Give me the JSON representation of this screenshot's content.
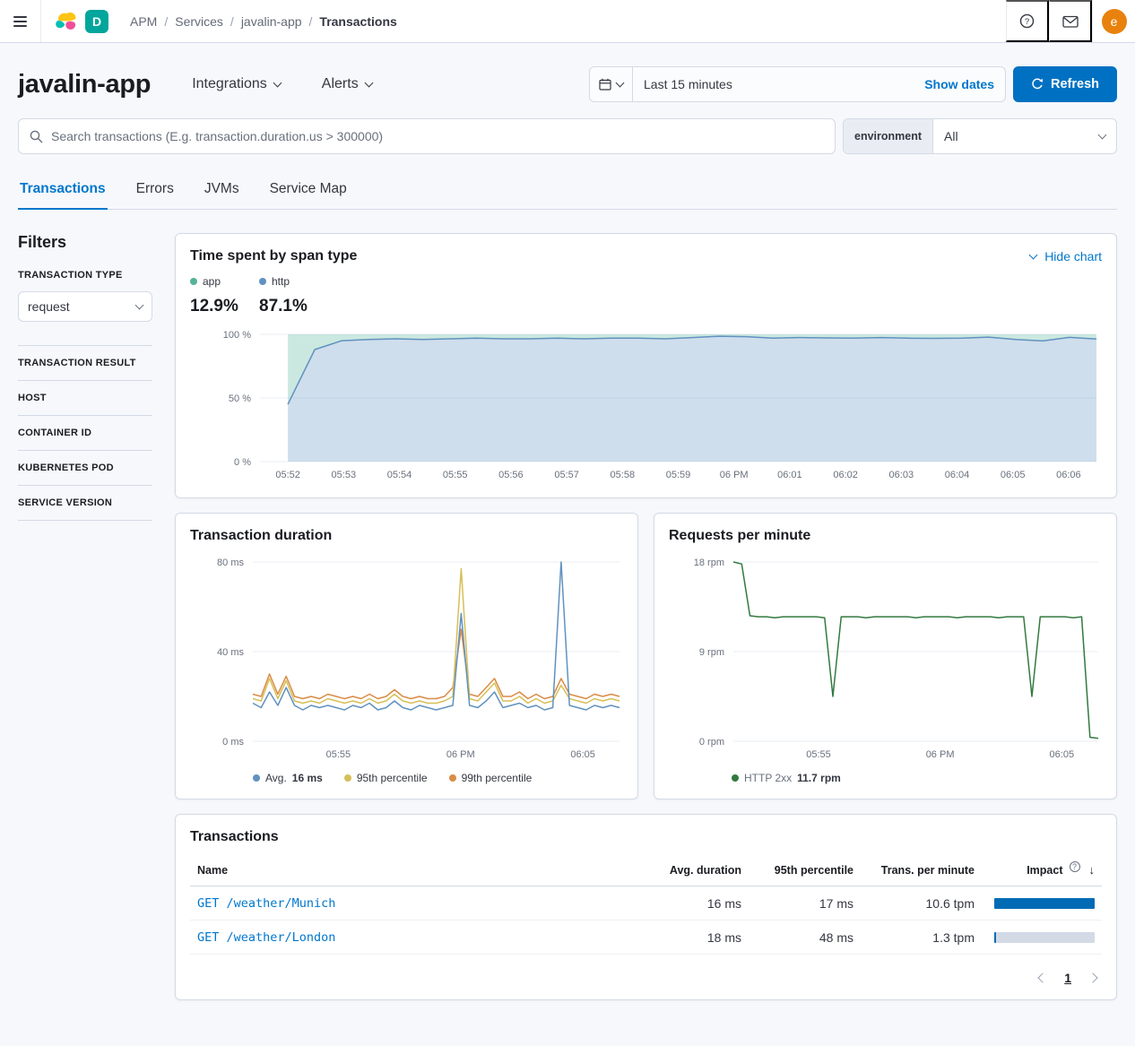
{
  "colors": {
    "primary": "#0077cc",
    "button": "#0071c2",
    "badge_teal": "#00a69b",
    "avatar_orange": "#e8820c",
    "impact_bar": "#006bb4"
  },
  "icons": {
    "help": "?",
    "impact_help": "?",
    "sort_desc": "↓"
  },
  "topbar": {
    "sep": "/",
    "deployment_badge": "D",
    "avatar_initial": "e",
    "breadcrumbs": [
      {
        "label": "APM"
      },
      {
        "label": "Services"
      },
      {
        "label": "javalin-app"
      },
      {
        "label": "Transactions"
      }
    ]
  },
  "header": {
    "title": "javalin-app",
    "integrations": "Integrations",
    "alerts": "Alerts",
    "time_range": "Last 15 minutes",
    "show_dates": "Show dates",
    "refresh": "Refresh"
  },
  "search": {
    "placeholder": "Search transactions (E.g. transaction.duration.us > 300000)",
    "environment_label": "environment",
    "environment_value": "All"
  },
  "tabs": [
    {
      "label": "Transactions"
    },
    {
      "label": "Errors"
    },
    {
      "label": "JVMs"
    },
    {
      "label": "Service Map"
    }
  ],
  "filters": {
    "heading": "Filters",
    "transaction_type_label": "TRANSACTION TYPE",
    "transaction_type_value": "request",
    "sections": [
      "TRANSACTION RESULT",
      "HOST",
      "CONTAINER ID",
      "KUBERNETES POD",
      "SERVICE VERSION"
    ]
  },
  "span_panel": {
    "title": "Time spent by span type",
    "hide_chart": "Hide chart",
    "legend": [
      {
        "label": "app",
        "value": "12.9%",
        "color": "#54B399"
      },
      {
        "label": "http",
        "value": "87.1%",
        "color": "#6092C0"
      }
    ]
  },
  "duration_panel": {
    "title": "Transaction duration",
    "legend": [
      {
        "label": "Avg.",
        "value": "16 ms",
        "color": "#6092C0"
      },
      {
        "label": "95th percentile",
        "value": "",
        "color": "#D6BF57"
      },
      {
        "label": "99th percentile",
        "value": "",
        "color": "#DA8B45"
      }
    ]
  },
  "rpm_panel": {
    "title": "Requests per minute",
    "legend": [
      {
        "label": "HTTP 2xx",
        "value": "11.7 rpm",
        "color": "#327a3f"
      }
    ]
  },
  "table": {
    "title": "Transactions",
    "columns": [
      "Name",
      "Avg. duration",
      "95th percentile",
      "Trans. per minute",
      "Impact"
    ],
    "rows": [
      {
        "name": "GET /weather/Munich",
        "avg": "16 ms",
        "p95": "17 ms",
        "tpm": "10.6 tpm",
        "impact": 100
      },
      {
        "name": "GET /weather/London",
        "avg": "18 ms",
        "p95": "48 ms",
        "tpm": "1.3 tpm",
        "impact": 2
      }
    ]
  },
  "pagination": {
    "page": "1"
  },
  "chart_data": [
    {
      "id": "time-spent-by-span-type",
      "type": "area",
      "title": "Time spent by span type",
      "ymin": 0,
      "ymax": 100,
      "yticks": [
        {
          "v": 100,
          "label": "100 %"
        },
        {
          "v": 50,
          "label": "50 %"
        },
        {
          "v": 0,
          "label": "0 %"
        }
      ],
      "xticks": [
        {
          "f": 0.0333,
          "label": "05:52"
        },
        {
          "f": 0.1,
          "label": "05:53"
        },
        {
          "f": 0.1667,
          "label": "05:54"
        },
        {
          "f": 0.2333,
          "label": "05:55"
        },
        {
          "f": 0.3,
          "label": "05:56"
        },
        {
          "f": 0.3667,
          "label": "05:57"
        },
        {
          "f": 0.4333,
          "label": "05:58"
        },
        {
          "f": 0.5,
          "label": "05:59"
        },
        {
          "f": 0.5667,
          "label": "06 PM"
        },
        {
          "f": 0.6333,
          "label": "06:01"
        },
        {
          "f": 0.7,
          "label": "06:02"
        },
        {
          "f": 0.7667,
          "label": "06:03"
        },
        {
          "f": 0.8333,
          "label": "06:04"
        },
        {
          "f": 0.9,
          "label": "06:05"
        },
        {
          "f": 0.9667,
          "label": "06:06"
        }
      ],
      "series": [
        {
          "name": "http",
          "color": "#6092C0",
          "fill_below_color": "#6092C0",
          "fill_above_color": "#54B399",
          "fill_opacity": 0.3,
          "f0": 0.0333,
          "values": [
            45,
            88,
            95,
            96,
            96.5,
            96,
            96.5,
            97,
            96.5,
            96.5,
            97,
            96.5,
            97,
            97,
            96.5,
            97.5,
            98.5,
            98.2,
            97,
            97.5,
            97.2,
            97,
            97.5,
            97,
            96.8,
            97,
            97.8,
            96,
            94.8,
            97.6,
            96.3
          ]
        }
      ]
    },
    {
      "id": "transaction-duration",
      "type": "line",
      "title": "Transaction duration",
      "ymin": 0,
      "ymax": 80,
      "yticks": [
        {
          "v": 80,
          "label": "80 ms"
        },
        {
          "v": 40,
          "label": "40 ms"
        },
        {
          "v": 0,
          "label": "0 ms"
        }
      ],
      "xticks": [
        {
          "f": 0.2333,
          "label": "05:55"
        },
        {
          "f": 0.5667,
          "label": "06 PM"
        },
        {
          "f": 0.9,
          "label": "06:05"
        }
      ],
      "series": [
        {
          "name": "99th percentile",
          "color": "#DA8B45",
          "values": [
            21,
            20,
            30,
            21,
            29,
            20,
            19,
            20,
            19,
            21,
            20,
            19,
            20,
            19,
            21,
            19,
            20,
            23,
            20,
            19,
            20,
            19,
            19,
            20,
            24,
            50,
            21,
            20,
            24,
            28,
            20,
            20,
            22,
            19,
            21,
            19,
            20,
            28,
            21,
            20,
            19,
            21,
            20,
            21,
            20
          ]
        },
        {
          "name": "95th percentile",
          "color": "#D6BF57",
          "values": [
            19,
            18,
            28,
            19,
            27,
            18,
            17,
            18,
            17,
            19,
            18,
            17,
            18,
            17,
            19,
            17,
            18,
            21,
            18,
            17,
            18,
            17,
            17,
            18,
            20,
            77,
            19,
            18,
            22,
            26,
            18,
            18,
            20,
            17,
            19,
            17,
            18,
            25,
            19,
            18,
            17,
            19,
            18,
            19,
            18
          ]
        },
        {
          "name": "Avg.",
          "color": "#6092C0",
          "values": [
            17,
            15,
            22,
            16,
            24,
            16,
            14,
            16,
            15,
            16,
            15,
            14,
            16,
            15,
            17,
            14,
            15,
            18,
            15,
            14,
            16,
            15,
            14,
            15,
            16,
            57,
            16,
            15,
            18,
            22,
            15,
            16,
            17,
            15,
            16,
            14,
            15,
            80,
            16,
            15,
            14,
            16,
            15,
            16,
            15
          ]
        }
      ]
    },
    {
      "id": "requests-per-minute",
      "type": "line",
      "title": "Requests per minute",
      "ymin": 0,
      "ymax": 18,
      "yticks": [
        {
          "v": 18,
          "label": "18 rpm"
        },
        {
          "v": 9,
          "label": "9 rpm"
        },
        {
          "v": 0,
          "label": "0 rpm"
        }
      ],
      "xticks": [
        {
          "f": 0.2333,
          "label": "05:55"
        },
        {
          "f": 0.5667,
          "label": "06 PM"
        },
        {
          "f": 0.9,
          "label": "06:05"
        }
      ],
      "series": [
        {
          "name": "HTTP 2xx",
          "color": "#327a3f",
          "values": [
            18,
            17.8,
            12.6,
            12.5,
            12.5,
            12.4,
            12.5,
            12.5,
            12.5,
            12.5,
            12.5,
            12.4,
            4.5,
            12.5,
            12.5,
            12.5,
            12.4,
            12.5,
            12.5,
            12.5,
            12.5,
            12.5,
            12.4,
            12.5,
            12.5,
            12.5,
            12.5,
            12.4,
            12.5,
            12.5,
            12.5,
            12.5,
            12.4,
            12.5,
            12.5,
            12.5,
            4.5,
            12.5,
            12.5,
            12.5,
            12.5,
            12.4,
            12.5,
            0.4,
            0.3
          ]
        }
      ]
    }
  ]
}
